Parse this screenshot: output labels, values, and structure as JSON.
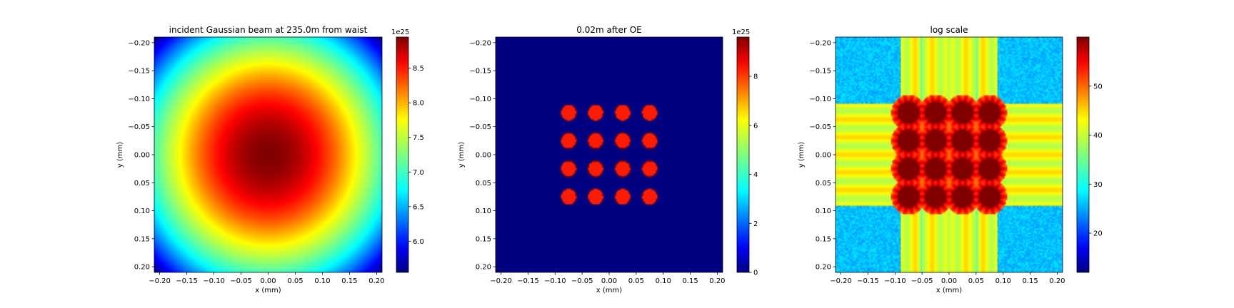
{
  "colormap": {
    "name": "jet",
    "stops": [
      "#000080",
      "#0000ff",
      "#00ffff",
      "#ffff00",
      "#ff0000",
      "#800000"
    ]
  },
  "chart_data": [
    {
      "type": "heatmap",
      "title": "incident Gaussian beam at 235.0m from waist",
      "xlabel": "x (mm)",
      "ylabel": "y (mm)",
      "xlim": [
        -0.21,
        0.21
      ],
      "ylim": [
        0.21,
        -0.21
      ],
      "x_ticks": [
        "−0.20",
        "−0.15",
        "−0.10",
        "−0.05",
        "0.00",
        "0.05",
        "0.10",
        "0.15",
        "0.20"
      ],
      "y_ticks": [
        "−0.20",
        "−0.15",
        "−0.10",
        "−0.05",
        "0.00",
        "0.05",
        "0.10",
        "0.15",
        "0.20"
      ],
      "field": {
        "kind": "gaussian",
        "peak": 8.95,
        "min": 5.55,
        "corner_radius": 0.297
      },
      "colorbar": {
        "range": [
          5.55,
          8.95
        ],
        "ticks": [
          6.0,
          6.5,
          7.0,
          7.5,
          8.0,
          8.5
        ],
        "tick_labels": [
          "6.0",
          "6.5",
          "7.0",
          "7.5",
          "8.0",
          "8.5"
        ],
        "offset_label": "1e25"
      }
    },
    {
      "type": "heatmap",
      "title": "0.02m after OE",
      "xlabel": "x (mm)",
      "ylabel": "y (mm)",
      "xlim": [
        -0.21,
        0.21
      ],
      "ylim": [
        0.21,
        -0.21
      ],
      "x_ticks": [
        "−0.20",
        "−0.15",
        "−0.10",
        "−0.05",
        "0.00",
        "0.05",
        "0.10",
        "0.15",
        "0.20"
      ],
      "y_ticks": [
        "−0.20",
        "−0.15",
        "−0.10",
        "−0.05",
        "0.00",
        "0.05",
        "0.10",
        "0.15",
        "0.20"
      ],
      "field": {
        "kind": "aperture_grid",
        "centers": [
          -0.075,
          -0.025,
          0.025,
          0.075
        ],
        "radius": 0.0135,
        "inside_value": 8.3,
        "background_value": 0
      },
      "colorbar": {
        "range": [
          0,
          9.6
        ],
        "ticks": [
          0,
          2,
          4,
          6,
          8
        ],
        "tick_labels": [
          "0",
          "2",
          "4",
          "6",
          "8"
        ],
        "offset_label": "1e25"
      }
    },
    {
      "type": "heatmap",
      "title": "log scale",
      "xlabel": "x (mm)",
      "ylabel": "y (mm)",
      "xlim": [
        -0.21,
        0.21
      ],
      "ylim": [
        0.21,
        -0.21
      ],
      "x_ticks": [
        "−0.20",
        "−0.15",
        "−0.10",
        "−0.05",
        "0.00",
        "0.05",
        "0.10",
        "0.15",
        "0.20"
      ],
      "y_ticks": [
        "−0.20",
        "−0.15",
        "−0.10",
        "−0.05",
        "0.00",
        "0.05",
        "0.10",
        "0.15",
        "0.20"
      ],
      "field": {
        "kind": "log_diffraction",
        "centers": [
          -0.075,
          -0.025,
          0.025,
          0.075
        ],
        "spot_radius": 0.02,
        "band_halfwidth": 0.09,
        "spot_value": 60,
        "band_value": 42,
        "background_value": 24
      },
      "colorbar": {
        "range": [
          12,
          60
        ],
        "ticks": [
          20,
          30,
          40,
          50
        ],
        "tick_labels": [
          "20",
          "30",
          "40",
          "50"
        ],
        "offset_label": ""
      }
    }
  ]
}
